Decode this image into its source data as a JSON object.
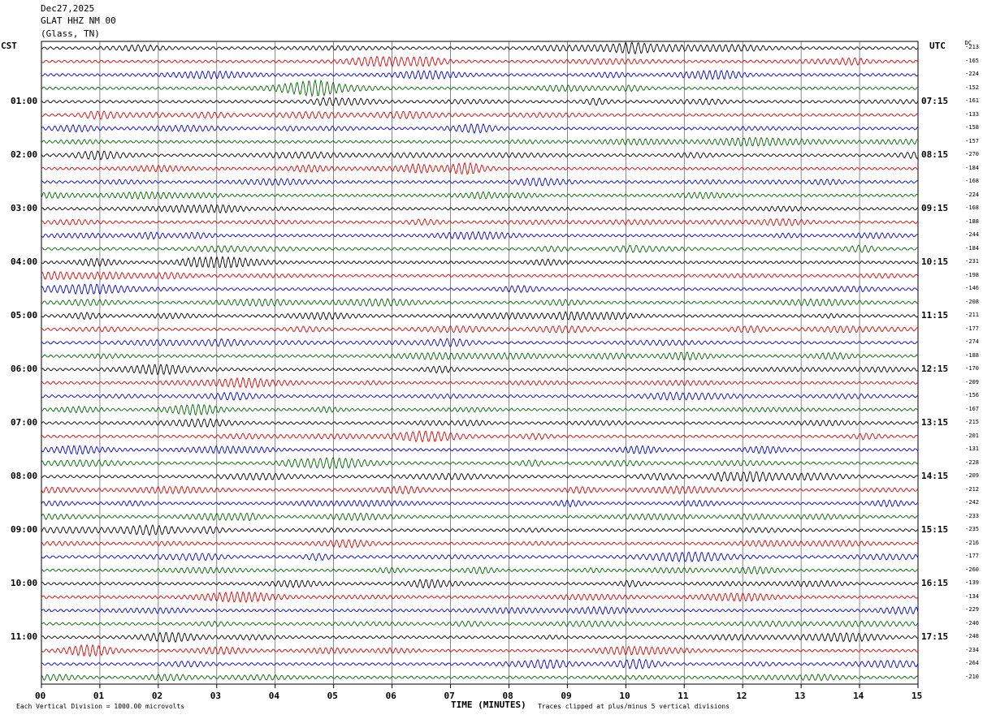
{
  "header": {
    "date": "Dec27,2025",
    "station": "GLAT HHZ NM 00",
    "location": "(Glass, TN)"
  },
  "labels": {
    "left_zone": "CST",
    "right_zone": "UTC",
    "dc_header": "DC"
  },
  "colors": {
    "trace_cycle": [
      "#000000",
      "#e00000",
      "#0000dd",
      "#006600"
    ],
    "grid": "#000000"
  },
  "chart_data": {
    "type": "line",
    "title": "",
    "xlabel": "TIME (MINUTES)",
    "ylabel": "",
    "xlim": [
      0,
      15
    ],
    "x_ticks": [
      "00",
      "01",
      "02",
      "03",
      "04",
      "05",
      "06",
      "07",
      "08",
      "09",
      "10",
      "11",
      "12",
      "13",
      "14",
      "15"
    ],
    "left_hour_labels": [
      "01:00",
      "02:00",
      "03:00",
      "04:00",
      "05:00",
      "06:00",
      "07:00",
      "08:00",
      "09:00",
      "10:00",
      "11:00"
    ],
    "right_hour_labels": [
      "07:15",
      "08:15",
      "09:15",
      "10:15",
      "11:15",
      "12:15",
      "13:15",
      "14:15",
      "15:15",
      "16:15",
      "17:15"
    ],
    "dc_offsets": [
      -213,
      -165,
      -224,
      -152,
      -161,
      -133,
      -158,
      -157,
      -270,
      -184,
      -168,
      -224,
      -168,
      -188,
      -244,
      -184,
      -231,
      -198,
      -146,
      -208,
      -211,
      -177,
      -274,
      -188,
      -170,
      -209,
      -156,
      -167,
      -215,
      -201,
      -131,
      -228,
      -209,
      -212,
      -242,
      -233,
      -235,
      -216,
      -177,
      -260,
      -139,
      -134,
      -229,
      -240,
      -248,
      -234,
      -264,
      -210
    ],
    "trace_count": 48,
    "minutes_per_trace": 15,
    "grid": true
  },
  "notes": {
    "vertical_division": "Each Vertical Division = 1000.00 microvolts",
    "clip": "Traces clipped at plus/minus 5 vertical divisions"
  }
}
